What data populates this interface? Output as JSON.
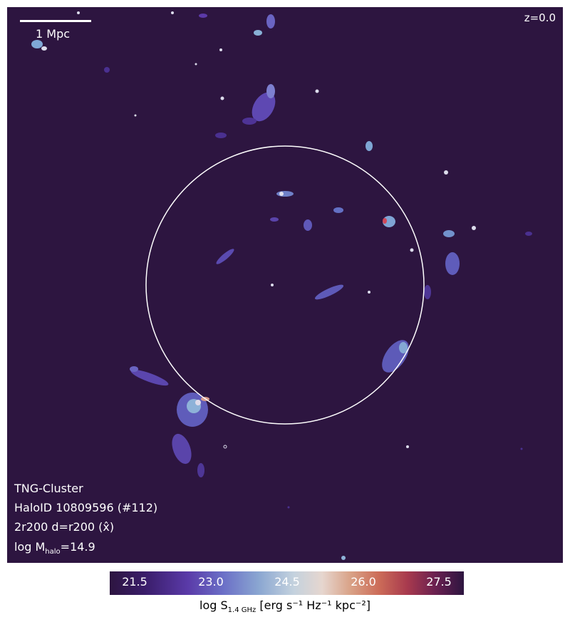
{
  "panel": {
    "redshift": "z=0.0",
    "scalebar": "1 Mpc",
    "info": {
      "simulation": "TNG-Cluster",
      "halo_id": "HaloID 10809596 (#112)",
      "projection": "2r200 d=r200 (x̂)",
      "mass_prefix": "log M",
      "mass_sub": "halo",
      "mass_value": "=14.9"
    }
  },
  "colorbar": {
    "ticks": [
      "21.5",
      "23.0",
      "24.5",
      "26.0",
      "27.5"
    ],
    "label_prefix": "log S",
    "label_sub": "1.4 GHz",
    "label_units": " [erg s⁻¹ Hz⁻¹ kpc⁻²]"
  },
  "colors": {
    "background": "#2d1540",
    "circle": "#ffffff"
  }
}
